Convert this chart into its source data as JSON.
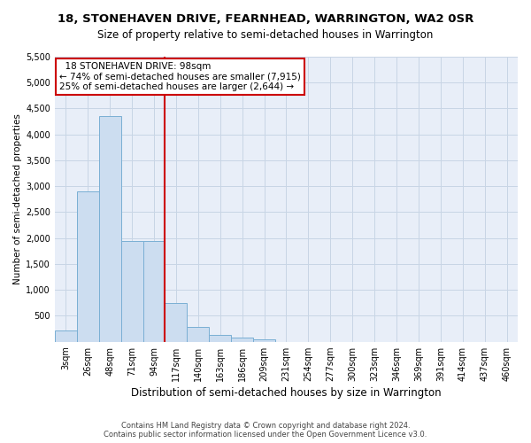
{
  "title": "18, STONEHAVEN DRIVE, FEARNHEAD, WARRINGTON, WA2 0SR",
  "subtitle": "Size of property relative to semi-detached houses in Warrington",
  "xlabel": "Distribution of semi-detached houses by size in Warrington",
  "ylabel": "Number of semi-detached properties",
  "annotation_line1": "18 STONEHAVEN DRIVE: 98sqm",
  "annotation_line2": "← 74% of semi-detached houses are smaller (7,915)",
  "annotation_line3": "25% of semi-detached houses are larger (2,644) →",
  "footer_line1": "Contains HM Land Registry data © Crown copyright and database right 2024.",
  "footer_line2": "Contains public sector information licensed under the Open Government Licence v3.0.",
  "bar_categories": [
    "3sqm",
    "26sqm",
    "48sqm",
    "71sqm",
    "94sqm",
    "117sqm",
    "140sqm",
    "163sqm",
    "186sqm",
    "209sqm",
    "231sqm",
    "254sqm",
    "277sqm",
    "300sqm",
    "323sqm",
    "346sqm",
    "369sqm",
    "391sqm",
    "414sqm",
    "437sqm",
    "460sqm"
  ],
  "bar_values": [
    220,
    2900,
    4350,
    1950,
    1950,
    750,
    280,
    130,
    80,
    50,
    0,
    0,
    0,
    0,
    0,
    0,
    0,
    0,
    0,
    0,
    0
  ],
  "bar_color": "#ccddf0",
  "bar_edge_color": "#7aafd4",
  "vline_color": "#cc0000",
  "vline_x": 4.5,
  "ylim_max": 5500,
  "ytick_step": 500,
  "annotation_box_edgecolor": "#cc0000",
  "grid_color": "#c8d5e5",
  "bg_color": "#e8eef8",
  "title_fontsize": 9.5,
  "subtitle_fontsize": 8.5,
  "xlabel_fontsize": 8.5,
  "ylabel_fontsize": 7.5,
  "tick_fontsize": 7,
  "annotation_fontsize": 7.5,
  "footer_fontsize": 6.0
}
